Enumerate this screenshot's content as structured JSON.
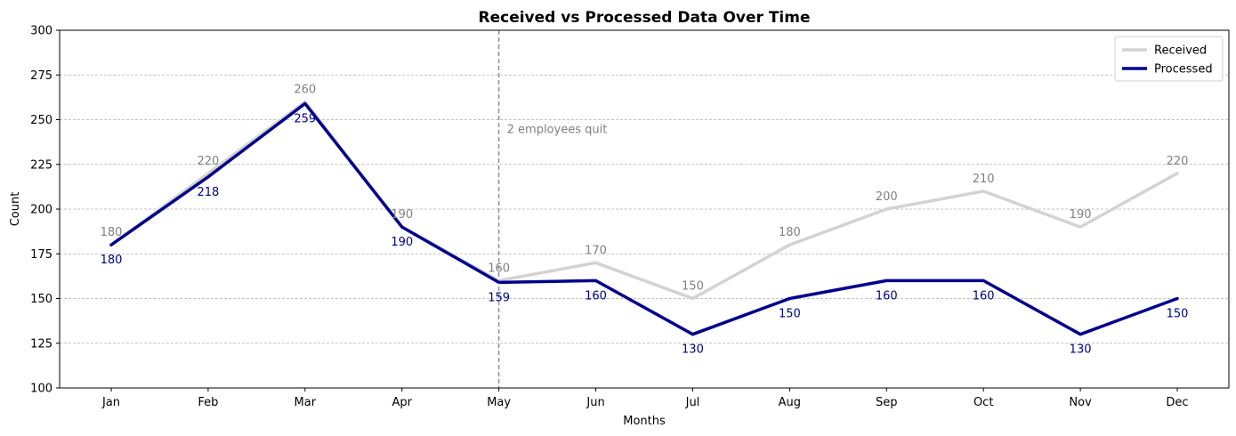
{
  "chart_data": {
    "type": "line",
    "title": "Received vs Processed Data Over Time",
    "xlabel": "Months",
    "ylabel": "Count",
    "categories": [
      "Jan",
      "Feb",
      "Mar",
      "Apr",
      "May",
      "Jun",
      "Jul",
      "Aug",
      "Sep",
      "Oct",
      "Nov",
      "Dec"
    ],
    "ylim": [
      100,
      300
    ],
    "yticks": [
      100,
      125,
      150,
      175,
      200,
      225,
      250,
      275,
      300
    ],
    "grid": "horizontal-dashed",
    "legend_position": "top-right",
    "series": [
      {
        "name": "Received",
        "values": [
          180,
          220,
          260,
          190,
          160,
          170,
          150,
          180,
          200,
          210,
          190,
          220
        ],
        "color": "#d3d3d3",
        "label_color": "#808080",
        "label_position": "above"
      },
      {
        "name": "Processed",
        "values": [
          180,
          218,
          259,
          190,
          159,
          160,
          130,
          150,
          160,
          160,
          130,
          150
        ],
        "color": "#00008b",
        "label_color": "#00008b",
        "label_position": "below"
      }
    ],
    "annotations": [
      {
        "text": "2 employees quit",
        "x": "May",
        "y": 245,
        "color": "#808080"
      }
    ],
    "vline": {
      "x": "May",
      "color": "#808080",
      "style": "dashed"
    }
  }
}
